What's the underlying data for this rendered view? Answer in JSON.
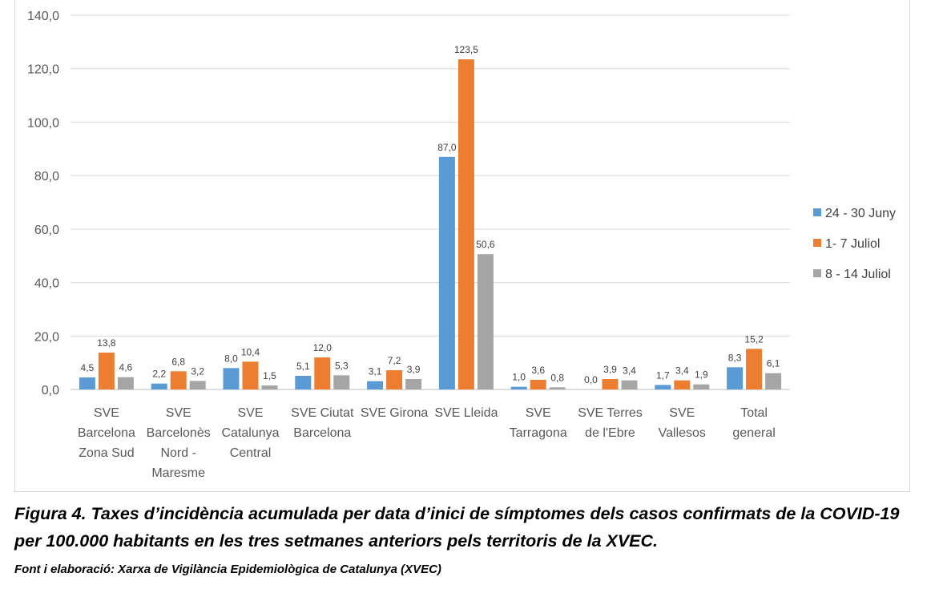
{
  "chart_data": {
    "type": "bar",
    "categories": [
      [
        "SVE",
        "Barcelona",
        "Zona Sud"
      ],
      [
        "SVE",
        "Barcelonès",
        "Nord -",
        "Maresme"
      ],
      [
        "SVE",
        "Catalunya",
        "Central"
      ],
      [
        "SVE Ciutat",
        "Barcelona"
      ],
      [
        "SVE Girona"
      ],
      [
        "SVE Lleida"
      ],
      [
        "SVE",
        "Tarragona"
      ],
      [
        "SVE Terres",
        "de l'Ebre"
      ],
      [
        "SVE",
        "Vallesos"
      ],
      [
        "Total",
        "general"
      ]
    ],
    "series": [
      {
        "name": "24 - 30 Juny",
        "color": "#5b9bd5",
        "values": [
          4.5,
          2.2,
          8.0,
          5.1,
          3.1,
          87.0,
          1.0,
          0.0,
          1.7,
          8.3
        ],
        "labels": [
          "4,5",
          "2,2",
          "8,0",
          "5,1",
          "3,1",
          "87,0",
          "1,0",
          "0,0",
          "1,7",
          "8,3"
        ]
      },
      {
        "name": "1- 7 Juliol",
        "color": "#ed7d31",
        "values": [
          13.8,
          6.8,
          10.4,
          12.0,
          7.2,
          123.5,
          3.6,
          3.9,
          3.4,
          15.2
        ],
        "labels": [
          "13,8",
          "6,8",
          "10,4",
          "12,0",
          "7,2",
          "123,5",
          "3,6",
          "3,9",
          "3,4",
          "15,2"
        ]
      },
      {
        "name": "8 - 14 Juliol",
        "color": "#a5a5a5",
        "values": [
          4.6,
          3.2,
          1.5,
          5.3,
          3.9,
          50.6,
          0.8,
          3.4,
          1.9,
          6.1
        ],
        "labels": [
          "4,6",
          "3,2",
          "1,5",
          "5,3",
          "3,9",
          "50,6",
          "0,8",
          "3,4",
          "1,9",
          "6,1"
        ]
      }
    ],
    "ylim": [
      0,
      140
    ],
    "yticks": [
      0,
      20,
      40,
      60,
      80,
      100,
      120,
      140
    ],
    "ytick_labels": [
      "0,0",
      "20,0",
      "40,0",
      "60,0",
      "80,0",
      "100,0",
      "120,0",
      "140,0"
    ],
    "grid": true,
    "legend_position": "right"
  },
  "caption": {
    "title": "Figura 4. Taxes d’incidència acumulada per data d’inici de símptomes dels casos confirmats de la COVID-19 per 100.000 habitants en les tres setmanes anteriors pels territoris de la XVEC.",
    "source": "Font i elaboració: Xarxa de Vigilància Epidemiològica de Catalunya (XVEC)"
  }
}
